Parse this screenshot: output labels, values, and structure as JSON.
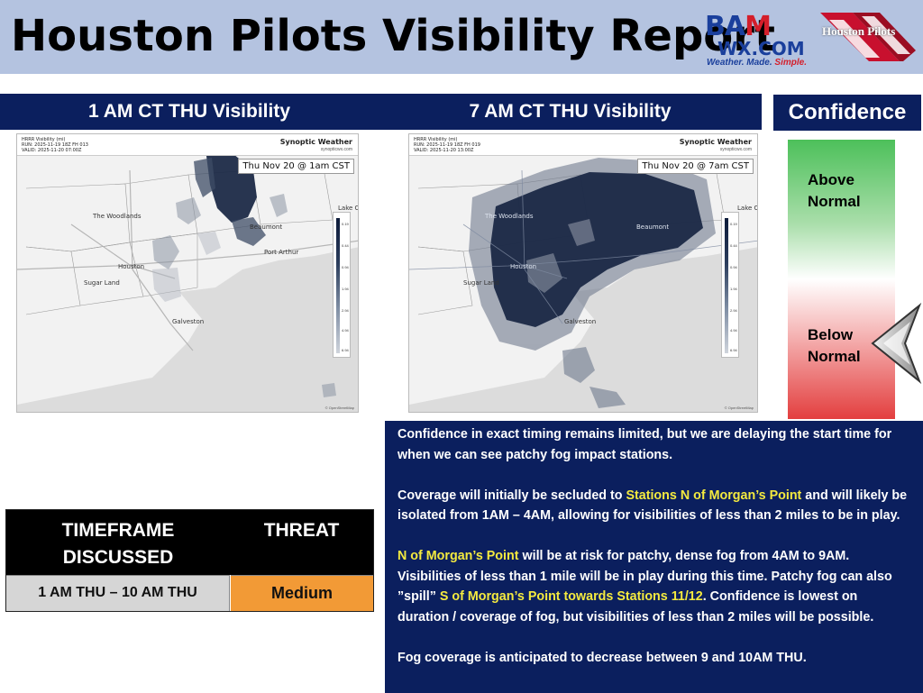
{
  "header": {
    "title": "Houston Pilots Visibility Report",
    "bam_logo": {
      "main_left": "BA",
      "main_right": "M",
      "wx": "WX.COM",
      "tag_a": "Weather. Made. ",
      "tag_b": "Simple."
    },
    "hp_logo": {
      "text": "Houston Pilots"
    }
  },
  "colors": {
    "navy": "#0b1f5e",
    "header_bg": "#b4c3e0",
    "highlight": "#f4ea3f",
    "threat_medium": "#f29a36",
    "fog_dense": "#1c2a47"
  },
  "panels": {
    "left": {
      "title": "1 AM CT THU Visibility",
      "meta": [
        "HRRR Visibility (mi)",
        "RUN: 2025-11-19 18Z FH 013",
        "VALID: 2025-11-20 07:00Z"
      ],
      "brand": "Synoptic Weather",
      "brand_sub": "synopticwx.com",
      "date_label": "Thu Nov 20 @ 1am CST",
      "cities": [
        "The Woodlands",
        "Houston",
        "Sugar Land",
        "Beaumont",
        "Port Arthur",
        "Galveston",
        "Lake C"
      ]
    },
    "middle": {
      "title": "7 AM CT THU Visibility",
      "meta": [
        "HRRR Visibility (mi)",
        "RUN: 2025-11-19 18Z FH 019",
        "VALID: 2025-11-20 13:00Z"
      ],
      "brand": "Synoptic Weather",
      "brand_sub": "synopticwx.com",
      "date_label": "Thu Nov 20 @ 7am CST",
      "cities": [
        "The Woodlands",
        "Houston",
        "Sugar Land",
        "Beaumont",
        "Galveston",
        "Lake C"
      ]
    },
    "legend_values": [
      "0.19",
      "0.44",
      "0.94",
      "1.94",
      "2.94",
      "4.94",
      "6.94"
    ],
    "credit": "© OpenStreetMap"
  },
  "confidence": {
    "title": "Confidence",
    "above": [
      "Above",
      "Normal"
    ],
    "below": [
      "Below",
      "Normal"
    ],
    "selected": "Below Normal"
  },
  "threat_table": {
    "header_timeframe": [
      "TIMEFRAME",
      "DISCUSSED"
    ],
    "header_threat": "THREAT",
    "timeframe": "1 AM THU – 10 AM THU",
    "threat": "Medium"
  },
  "summary": {
    "p1": "Confidence in exact timing remains limited, but we are delaying the start time for when we can see patchy fog impact stations.",
    "p2_a": "Coverage will initially be secluded to ",
    "p2_hl": "Stations N of Morgan’s Point",
    "p2_b": " and will likely be isolated from 1AM – 4AM, allowing for visibilities of less than 2 miles to be in play.",
    "p3_hl1": "N of Morgan’s Point",
    "p3_a": " will be at risk for patchy, dense fog from 4AM to 9AM. Visibilities of less than 1 mile will be in play during this time. Patchy fog can also ”spill” ",
    "p3_hl2": "S of Morgan’s Point towards Stations 11/12",
    "p3_b": ". Confidence is lowest on duration / coverage of fog, but visibilities of less than 2 miles will be possible.",
    "p4": "Fog coverage is anticipated to decrease between 9 and 10AM THU."
  }
}
